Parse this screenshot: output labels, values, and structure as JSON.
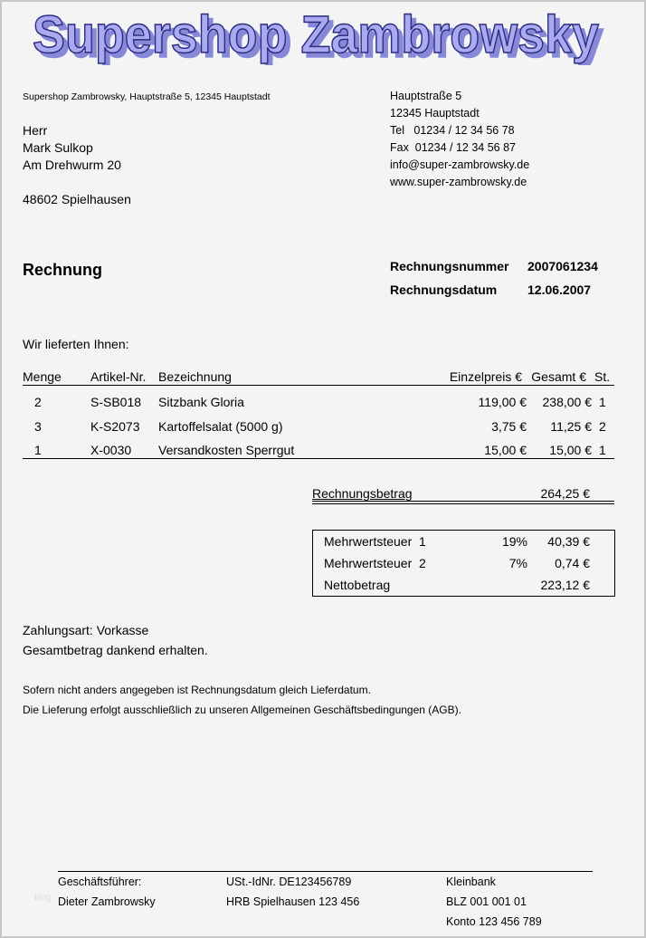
{
  "logo": {
    "text": "Supershop Zambrowsky",
    "fill": "#aaaaf0",
    "stroke": "#2a2a80",
    "shadow": "#8888d8"
  },
  "sender_line": "Supershop Zambrowsky, Hauptstraße 5, 12345 Hauptstadt",
  "recipient": [
    "Herr",
    "Mark Sulkop",
    "Am Drehwurm 20",
    "",
    "48602 Spielhausen"
  ],
  "company_contact": [
    "Hauptstraße 5",
    "12345 Hauptstadt",
    "Tel   01234 / 12 34 56 78",
    "Fax  01234 / 12 34 56 87",
    "info@super-zambrowsky.de",
    "www.super-zambrowsky.de"
  ],
  "doc_title": "Rechnung",
  "invoice_number": {
    "label": "Rechnungsnummer",
    "value": "2007061234"
  },
  "invoice_date": {
    "label": "Rechnungsdatum",
    "value": "12.06.2007"
  },
  "intro": "Wir lieferten Ihnen:",
  "table": {
    "headers": [
      "Menge",
      "Artikel-Nr.",
      "Bezeichnung",
      "Einzelpreis €",
      "Gesamt €",
      "St."
    ],
    "rows": [
      [
        "2",
        "S-SB018",
        "Sitzbank Gloria",
        "119,00 €",
        "238,00 €",
        "1"
      ],
      [
        "3",
        "K-S2073",
        "Kartoffelsalat (5000 g)",
        "3,75 €",
        "11,25 €",
        "2"
      ],
      [
        "1",
        "X-0030",
        "Versandkosten Sperrgut",
        "15,00 €",
        "15,00 €",
        "1"
      ]
    ]
  },
  "total": {
    "label": "Rechnungsbetrag",
    "value": "264,25 €"
  },
  "tax": [
    {
      "label": "Mehrwertsteuer  1",
      "rate": "19%",
      "value": "40,39 €"
    },
    {
      "label": "Mehrwertsteuer  2",
      "rate": "7%",
      "value": "0,74 €"
    },
    {
      "label": "Nettobetrag",
      "rate": "",
      "value": "223,12 €"
    }
  ],
  "payment": [
    "Zahlungsart: Vorkasse",
    "Gesamtbetrag dankend erhalten."
  ],
  "notes": [
    "Sofern nicht anders angegeben ist Rechnungsdatum gleich Lieferdatum.",
    "Die Lieferung erfolgt ausschließlich zu unseren Allgemeinen Geschäftsbedingungen (AGB)."
  ],
  "footer": {
    "col1": [
      "Geschäftsführer:",
      "Dieter Zambrowsky"
    ],
    "col2": [
      "USt.-IdNr. DE123456789",
      "HRB Spielhausen 123 456"
    ],
    "col3": [
      "Kleinbank",
      "BLZ 001 001 01",
      "Konto 123 456 789"
    ]
  },
  "watermark": "blog"
}
